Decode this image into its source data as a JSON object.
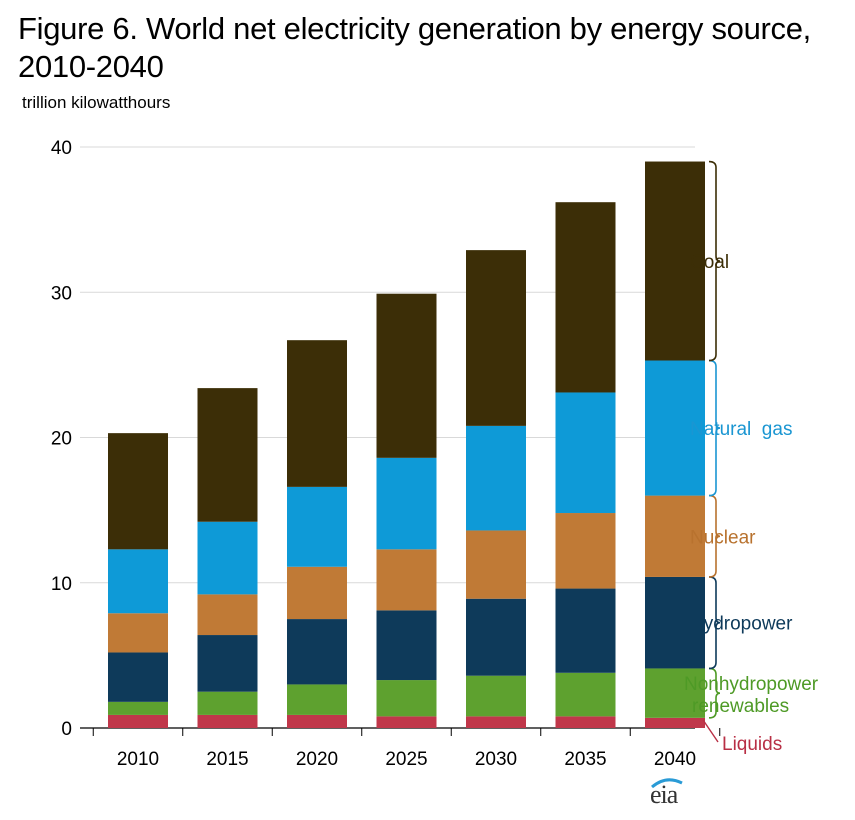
{
  "title": "Figure 6. World net electricity generation by energy source, 2010-2040",
  "unit_label": "trillion  kilowatthours",
  "logo_text": "eia",
  "chart_data": {
    "type": "bar",
    "stacked": true,
    "categories": [
      "2010",
      "2015",
      "2020",
      "2025",
      "2030",
      "2035",
      "2040"
    ],
    "ylim": [
      0,
      40
    ],
    "yticks": [
      0,
      10,
      20,
      30,
      40
    ],
    "grid": true,
    "series": [
      {
        "name": "Liquids",
        "color": "#c0374a",
        "values": [
          0.9,
          0.9,
          0.9,
          0.8,
          0.8,
          0.8,
          0.7
        ]
      },
      {
        "name": "Nonhydropower renewables",
        "color": "#5ea12f",
        "values": [
          0.9,
          1.6,
          2.1,
          2.5,
          2.8,
          3.0,
          3.4
        ]
      },
      {
        "name": "Hydropower",
        "color": "#0e3a5a",
        "values": [
          3.4,
          3.9,
          4.5,
          4.8,
          5.3,
          5.8,
          6.3
        ]
      },
      {
        "name": "Nuclear",
        "color": "#c07a36",
        "values": [
          2.7,
          2.8,
          3.6,
          4.2,
          4.7,
          5.2,
          5.6
        ]
      },
      {
        "name": "Natural gas",
        "color": "#0e9ad7",
        "values": [
          4.4,
          5.0,
          5.5,
          6.3,
          7.2,
          8.3,
          9.3
        ]
      },
      {
        "name": "Coal",
        "color": "#3c2e07",
        "values": [
          8.0,
          9.2,
          10.1,
          11.3,
          12.1,
          13.1,
          13.7
        ]
      }
    ]
  }
}
